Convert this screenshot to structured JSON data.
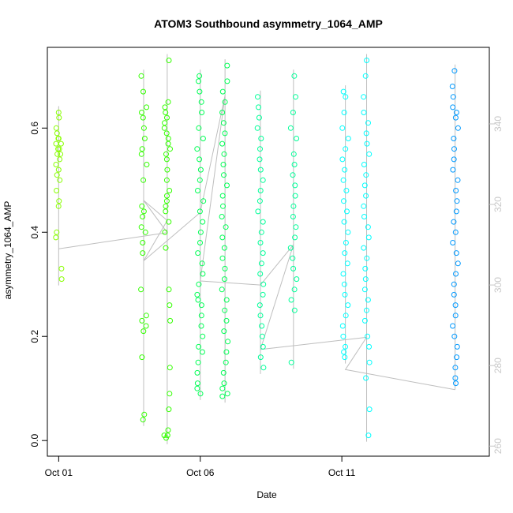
{
  "chart_data": {
    "type": "scatter",
    "title": "ATOM3 Southbound asymmetry_1064_AMP",
    "xlabel": "Date",
    "ylabel": "asymmetry_1064_AMP",
    "x_ticks": [
      "Oct 01",
      "Oct 06",
      "Oct 11"
    ],
    "x_tick_values": [
      "2016-10-01",
      "2016-10-06",
      "2016-10-11"
    ],
    "xlim": [
      "2016-09-30T14:24",
      "2016-10-16T05:00"
    ],
    "y_ticks": [
      "0.0",
      "0.2",
      "0.4",
      "0.6"
    ],
    "ylim": [
      -0.03,
      0.755
    ],
    "right_axis_ticks": [
      "260",
      "280",
      "300",
      "320",
      "340"
    ],
    "right_axis_lim": [
      257.5,
      359
    ],
    "grid": false,
    "legend": "none",
    "marker": "open-circle",
    "point_colors": [
      "#88ff00",
      "#33ff00",
      "#00ff55",
      "#00ff99",
      "#00ffff",
      "#0099ff"
    ],
    "line_color": "#bebebe",
    "right_axis_color": "#c8c8c8",
    "series": [
      {
        "x": "2016-10-01",
        "y": [
          0.63,
          0.62,
          0.6,
          0.59,
          0.58,
          0.58,
          0.57,
          0.57,
          0.56,
          0.56,
          0.55,
          0.55,
          0.54,
          0.53,
          0.52,
          0.51,
          0.5,
          0.48,
          0.46,
          0.45,
          0.4,
          0.39,
          0.33,
          0.31
        ],
        "color": "#88ff00"
      },
      {
        "x": "2016-10-04",
        "y": [
          0.7,
          0.67,
          0.64,
          0.63,
          0.62,
          0.6,
          0.58,
          0.56,
          0.55,
          0.53,
          0.5,
          0.45,
          0.44,
          0.43,
          0.41,
          0.4,
          0.38,
          0.36,
          0.29,
          0.24,
          0.23,
          0.22,
          0.21,
          0.16,
          0.05,
          0.04
        ],
        "color": "#33ff00"
      },
      {
        "x": "2016-10-04T20:00",
        "y": [
          0.73,
          0.65,
          0.64,
          0.63,
          0.62,
          0.61,
          0.6,
          0.59,
          0.58,
          0.57,
          0.56,
          0.55,
          0.54,
          0.52,
          0.5,
          0.48,
          0.47,
          0.46,
          0.45,
          0.44,
          0.42,
          0.4,
          0.37,
          0.29,
          0.26,
          0.23,
          0.14,
          0.09,
          0.06,
          0.02,
          0.01,
          0.01,
          0.005
        ],
        "color": "#33ff00"
      },
      {
        "x": "2016-10-06",
        "y": [
          0.7,
          0.69,
          0.67,
          0.65,
          0.63,
          0.6,
          0.58,
          0.56,
          0.54,
          0.52,
          0.5,
          0.48,
          0.46,
          0.44,
          0.42,
          0.4,
          0.38,
          0.36,
          0.34,
          0.32,
          0.3,
          0.28,
          0.27,
          0.26,
          0.24,
          0.22,
          0.2,
          0.18,
          0.17,
          0.15,
          0.13,
          0.11,
          0.1,
          0.09
        ],
        "color": "#00ff55"
      },
      {
        "x": "2016-10-06T21:00",
        "y": [
          0.72,
          0.69,
          0.67,
          0.65,
          0.63,
          0.61,
          0.59,
          0.57,
          0.55,
          0.53,
          0.51,
          0.49,
          0.47,
          0.45,
          0.43,
          0.41,
          0.39,
          0.37,
          0.35,
          0.33,
          0.31,
          0.29,
          0.27,
          0.25,
          0.23,
          0.21,
          0.19,
          0.17,
          0.15,
          0.13,
          0.11,
          0.1,
          0.09,
          0.085
        ],
        "color": "#00ff55"
      },
      {
        "x": "2016-10-08T03:00",
        "y": [
          0.66,
          0.64,
          0.62,
          0.6,
          0.58,
          0.56,
          0.54,
          0.52,
          0.5,
          0.48,
          0.46,
          0.44,
          0.42,
          0.4,
          0.38,
          0.36,
          0.34,
          0.32,
          0.3,
          0.28,
          0.26,
          0.24,
          0.22,
          0.2,
          0.18,
          0.16,
          0.14
        ],
        "color": "#00ff99"
      },
      {
        "x": "2016-10-09T07:00",
        "y": [
          0.7,
          0.66,
          0.63,
          0.6,
          0.58,
          0.55,
          0.53,
          0.51,
          0.49,
          0.47,
          0.45,
          0.43,
          0.41,
          0.39,
          0.37,
          0.35,
          0.33,
          0.31,
          0.29,
          0.27,
          0.25,
          0.15
        ],
        "color": "#00ff99"
      },
      {
        "x": "2016-10-11T03:00",
        "y": [
          0.67,
          0.66,
          0.63,
          0.6,
          0.58,
          0.56,
          0.54,
          0.52,
          0.5,
          0.48,
          0.46,
          0.44,
          0.42,
          0.4,
          0.38,
          0.36,
          0.34,
          0.32,
          0.3,
          0.28,
          0.26,
          0.24,
          0.22,
          0.2,
          0.18,
          0.17,
          0.16
        ],
        "color": "#00ffff"
      },
      {
        "x": "2016-10-11T21:00",
        "y": [
          0.73,
          0.7,
          0.66,
          0.63,
          0.61,
          0.59,
          0.57,
          0.55,
          0.53,
          0.51,
          0.49,
          0.47,
          0.45,
          0.43,
          0.41,
          0.39,
          0.37,
          0.35,
          0.33,
          0.31,
          0.29,
          0.27,
          0.25,
          0.23,
          0.2,
          0.18,
          0.15,
          0.12,
          0.06,
          0.01
        ],
        "color": "#00ffff"
      },
      {
        "x": "2016-10-15T00:00",
        "y": [
          0.71,
          0.68,
          0.66,
          0.64,
          0.63,
          0.62,
          0.6,
          0.58,
          0.56,
          0.54,
          0.52,
          0.5,
          0.48,
          0.46,
          0.44,
          0.42,
          0.4,
          0.38,
          0.36,
          0.34,
          0.32,
          0.3,
          0.28,
          0.26,
          0.24,
          0.22,
          0.2,
          0.18,
          0.16,
          0.14,
          0.12,
          0.11
        ],
        "color": "#0099ff"
      }
    ],
    "grey_line": {
      "x": [
        "2016-10-01",
        "2016-10-04T20:00",
        "2016-10-04",
        "2016-10-04T20:00",
        "2016-10-04",
        "2016-10-06",
        "2016-10-06T21:00",
        "2016-10-06",
        "2016-10-08T03:00",
        "2016-10-09T07:00",
        "2016-10-08T03:00",
        "2016-10-11T21:00",
        "2016-10-11T03:00",
        "2016-10-15T00:00"
      ],
      "y": [
        309,
        313,
        321,
        316,
        306,
        318,
        347,
        301,
        300,
        310,
        284,
        287,
        279,
        274
      ]
    }
  }
}
